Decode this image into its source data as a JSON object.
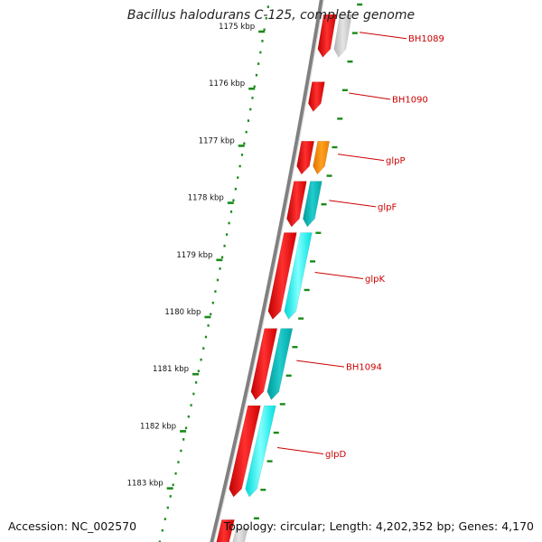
{
  "title": "Bacillus halodurans C-125, complete genome",
  "footer": {
    "accession": "Accession: NC_002570",
    "summary": "Topology: circular; Length: 4,202,352 bp; Genes: 4,170"
  },
  "ruler": {
    "unit": "kbp",
    "ticks": [
      {
        "label": "1175 kbp",
        "kb": 1175
      },
      {
        "label": "1176 kbp",
        "kb": 1176
      },
      {
        "label": "1177 kbp",
        "kb": 1177
      },
      {
        "label": "1178 kbp",
        "kb": 1178
      },
      {
        "label": "1179 kbp",
        "kb": 1179
      },
      {
        "label": "1180 kbp",
        "kb": 1180
      },
      {
        "label": "1181 kbp",
        "kb": 1181
      },
      {
        "label": "1182 kbp",
        "kb": 1182
      },
      {
        "label": "1183 kbp",
        "kb": 1183
      }
    ]
  },
  "colors": {
    "cds": "#ff0000",
    "cds_light": "#ff6a6a",
    "gene_grey": "#c8c8c8",
    "gene_cyan": "#00ffff",
    "gene_teal": "#00c0c0",
    "gene_orange": "#ff8c00",
    "ruler_dots": "#1a8a1a",
    "backbone": "#808080",
    "label": "#cc0000"
  },
  "genes": [
    {
      "name": "BH1089",
      "start_kb": 1174.7,
      "end_kb": 1175.45,
      "color": "gene_grey"
    },
    {
      "name": "BH1090",
      "start_kb": 1175.88,
      "end_kb": 1176.4,
      "color": "cds"
    },
    {
      "name": "glpP",
      "start_kb": 1176.92,
      "end_kb": 1177.5,
      "color": "gene_orange"
    },
    {
      "name": "glpF",
      "start_kb": 1177.62,
      "end_kb": 1178.42,
      "color": "gene_teal"
    },
    {
      "name": "glpK",
      "start_kb": 1178.52,
      "end_kb": 1180.04,
      "color": "gene_cyan"
    },
    {
      "name": "BH1094",
      "start_kb": 1180.2,
      "end_kb": 1181.45,
      "color": "gene_teal"
    },
    {
      "name": "glpD",
      "start_kb": 1181.55,
      "end_kb": 1183.15,
      "color": "gene_cyan"
    }
  ]
}
